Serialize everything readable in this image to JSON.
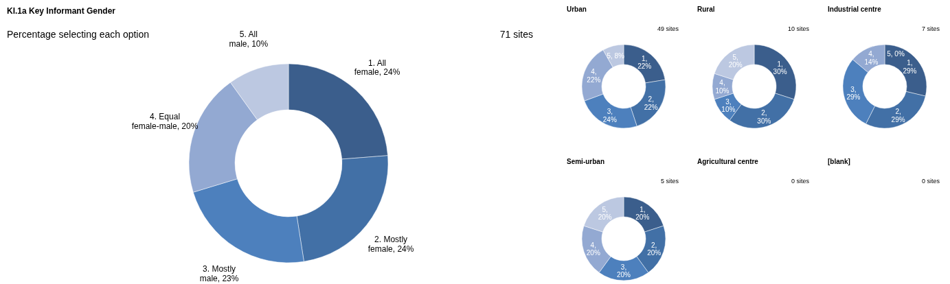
{
  "chart_data": [
    {
      "type": "donut",
      "title": "KI.1a Key Informant Gender",
      "subtitle": "Percentage selecting each option",
      "annotations": [
        "71 sites"
      ],
      "categories": [
        "1. All female",
        "2. Mostly female",
        "3. Mostly male",
        "4. Equal female-male",
        "5. All male"
      ],
      "values": [
        24,
        24,
        23,
        20,
        10
      ],
      "colors": [
        "#3b5e8c",
        "#4270a6",
        "#4d80bd",
        "#93a9d2",
        "#bcc8e1"
      ],
      "value_labels": [
        "24%",
        "24%",
        "23%",
        "20%",
        "10%"
      ]
    },
    {
      "type": "donut",
      "title": "Urban",
      "annotations": [
        "49 sites"
      ],
      "values": [
        22,
        22,
        24,
        22,
        8
      ],
      "colors": [
        "#3b5e8c",
        "#4270a6",
        "#4d80bd",
        "#93a9d2",
        "#bcc8e1"
      ],
      "value_labels": [
        "1, 22%",
        "2, 22%",
        "3, 24%",
        "4, 22%",
        "5, 8%"
      ]
    },
    {
      "type": "donut",
      "title": "Rural",
      "annotations": [
        "10 sites"
      ],
      "values": [
        30,
        30,
        10,
        10,
        20
      ],
      "colors": [
        "#3b5e8c",
        "#4270a6",
        "#4d80bd",
        "#93a9d2",
        "#bcc8e1"
      ],
      "value_labels": [
        "1, 30%",
        "2, 30%",
        "3, 10%",
        "4, 10%",
        "5, 20%"
      ]
    },
    {
      "type": "donut",
      "title": "Industrial centre",
      "annotations": [
        "7 sites"
      ],
      "values": [
        29,
        29,
        29,
        14,
        0
      ],
      "colors": [
        "#3b5e8c",
        "#4270a6",
        "#4d80bd",
        "#93a9d2",
        "#bcc8e1"
      ],
      "value_labels": [
        "1, 29%",
        "2, 29%",
        "3, 29%",
        "4, 14%",
        "5, 0%"
      ]
    },
    {
      "type": "donut",
      "title": "Semi-urban",
      "annotations": [
        "5 sites"
      ],
      "values": [
        20,
        20,
        20,
        20,
        20
      ],
      "colors": [
        "#3b5e8c",
        "#4270a6",
        "#4d80bd",
        "#93a9d2",
        "#bcc8e1"
      ],
      "value_labels": [
        "1, 20%",
        "2, 20%",
        "3, 20%",
        "4, 20%",
        "5, 20%"
      ]
    },
    {
      "type": "other",
      "title": "Agricultural centre",
      "annotations": [
        "0 sites"
      ]
    },
    {
      "type": "other",
      "title": "[blank]",
      "annotations": [
        "0 sites"
      ]
    }
  ]
}
